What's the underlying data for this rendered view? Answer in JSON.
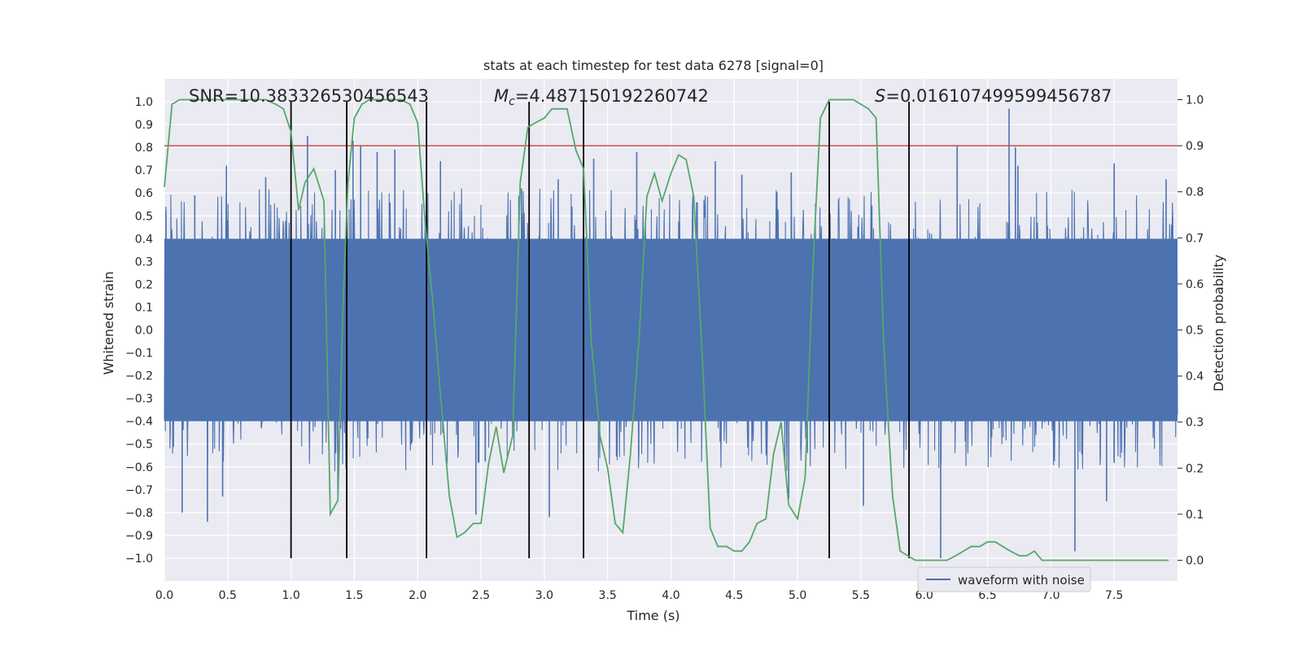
{
  "chart_data": {
    "type": "line",
    "title": "stats at each timestep for test data 6278 [signal=0]",
    "xlabel": "Time (s)",
    "ylabel": "Whitened strain",
    "y2label": "Detection probability",
    "xlim": [
      0,
      8.0
    ],
    "ylim": [
      -1.1,
      1.1
    ],
    "y2lim": [
      -0.045,
      1.045
    ],
    "x_ticks": [
      0.0,
      0.5,
      1.0,
      1.5,
      2.0,
      2.5,
      3.0,
      3.5,
      4.0,
      4.5,
      5.0,
      5.5,
      6.0,
      6.5,
      7.0,
      7.5
    ],
    "x_tick_labels": [
      "0.0",
      "0.5",
      "1.0",
      "1.5",
      "2.0",
      "2.5",
      "3.0",
      "3.5",
      "4.0",
      "4.5",
      "5.0",
      "5.5",
      "6.0",
      "6.5",
      "7.0",
      "7.5"
    ],
    "y_ticks": [
      1.0,
      0.9,
      0.8,
      0.7,
      0.6,
      0.5,
      0.4,
      0.3,
      0.2,
      0.1,
      0.0,
      -0.1,
      -0.2,
      -0.3,
      -0.4,
      -0.5,
      -0.6,
      -0.7,
      -0.8,
      -0.9,
      -1.0
    ],
    "y_tick_labels": [
      "1.0",
      "0.9",
      "0.8",
      "0.7",
      "0.6",
      "0.5",
      "0.4",
      "0.3",
      "0.2",
      "0.1",
      "0.0",
      "−0.1",
      "−0.2",
      "−0.3",
      "−0.4",
      "−0.5",
      "−0.6",
      "−0.7",
      "−0.8",
      "−0.9",
      "−1.0"
    ],
    "y2_ticks": [
      1.0,
      0.9,
      0.8,
      0.7,
      0.6,
      0.5,
      0.4,
      0.3,
      0.2,
      0.1,
      0.0
    ],
    "y2_tick_labels": [
      "1.0",
      "0.9",
      "0.8",
      "0.7",
      "0.6",
      "0.5",
      "0.4",
      "0.3",
      "0.2",
      "0.1",
      "0.0"
    ],
    "grid": true,
    "annotations": {
      "snr": "SNR=10.383326530456543",
      "mc_symbol": "M",
      "mc_subscript": "c",
      "mc_value": "=4.487150192260742",
      "s_symbol": "S",
      "s_value": "=0.016107499599456787"
    },
    "legend": {
      "position": "bottom-right",
      "entries": [
        "waveform with noise"
      ]
    },
    "threshold": {
      "y2": 0.9,
      "color": "#c44e52"
    },
    "vertical_lines": [
      1.0,
      1.44,
      2.07,
      2.88,
      3.31,
      5.25,
      5.88
    ],
    "vertical_line_range": [
      -1.0,
      1.0
    ],
    "waveform": {
      "name": "waveform with noise",
      "color": "#4c72b0",
      "x_range": [
        0,
        8.0
      ],
      "core_amplitude": 0.4,
      "spikes": [
        [
          0.14,
          -0.8
        ],
        [
          0.24,
          0.59
        ],
        [
          0.34,
          -0.84
        ],
        [
          0.46,
          -0.73
        ],
        [
          0.49,
          0.72
        ],
        [
          0.8,
          0.67
        ],
        [
          1.13,
          0.85
        ],
        [
          1.35,
          0.7
        ],
        [
          1.37,
          -0.72
        ],
        [
          1.49,
          0.83
        ],
        [
          1.55,
          0.81
        ],
        [
          1.68,
          0.78
        ],
        [
          1.82,
          0.79
        ],
        [
          2.18,
          0.74
        ],
        [
          2.46,
          -0.81
        ],
        [
          2.82,
          0.62
        ],
        [
          3.04,
          -0.82
        ],
        [
          3.11,
          0.66
        ],
        [
          3.39,
          0.75
        ],
        [
          3.73,
          0.78
        ],
        [
          4.35,
          0.74
        ],
        [
          4.56,
          0.68
        ],
        [
          4.93,
          -0.74
        ],
        [
          4.95,
          0.69
        ],
        [
          5.52,
          -0.77
        ],
        [
          6.13,
          -1.0
        ],
        [
          6.26,
          0.81
        ],
        [
          6.67,
          0.97
        ],
        [
          6.72,
          0.8
        ],
        [
          6.74,
          0.72
        ],
        [
          7.19,
          -0.97
        ],
        [
          7.44,
          -0.75
        ],
        [
          7.5,
          0.73
        ],
        [
          7.91,
          0.66
        ]
      ]
    },
    "probability": {
      "name": "detection probability",
      "color": "#55a868",
      "x": [
        0.0,
        0.06,
        0.12,
        0.25,
        0.4,
        0.55,
        0.7,
        0.8,
        0.88,
        0.94,
        1.0,
        1.06,
        1.11,
        1.18,
        1.26,
        1.31,
        1.37,
        1.41,
        1.45,
        1.5,
        1.56,
        1.62,
        1.75,
        1.87,
        1.94,
        2.0,
        2.06,
        2.12,
        2.18,
        2.25,
        2.31,
        2.37,
        2.44,
        2.5,
        2.56,
        2.62,
        2.68,
        2.75,
        2.81,
        2.87,
        2.93,
        3.0,
        3.06,
        3.12,
        3.18,
        3.25,
        3.31,
        3.37,
        3.44,
        3.5,
        3.56,
        3.62,
        3.68,
        3.75,
        3.81,
        3.87,
        3.93,
        4.0,
        4.06,
        4.12,
        4.18,
        4.25,
        4.31,
        4.37,
        4.44,
        4.5,
        4.56,
        4.62,
        4.68,
        4.75,
        4.81,
        4.87,
        4.93,
        5.0,
        5.06,
        5.12,
        5.18,
        5.25,
        5.31,
        5.37,
        5.44,
        5.5,
        5.56,
        5.62,
        5.68,
        5.75,
        5.81,
        5.87,
        5.93,
        6.0,
        6.06,
        6.12,
        6.18,
        6.25,
        6.31,
        6.37,
        6.44,
        6.5,
        6.56,
        6.62,
        6.68,
        6.75,
        6.81,
        6.87,
        6.93,
        7.0,
        7.06,
        7.12,
        7.18,
        7.25,
        7.31,
        7.37,
        7.44,
        7.5,
        7.56,
        7.62,
        7.68,
        7.75,
        7.81,
        7.87,
        7.93
      ],
      "y": [
        0.81,
        0.99,
        1.0,
        1.0,
        1.0,
        1.0,
        1.0,
        1.0,
        0.99,
        0.98,
        0.93,
        0.76,
        0.82,
        0.85,
        0.78,
        0.1,
        0.13,
        0.55,
        0.82,
        0.96,
        0.99,
        1.0,
        1.0,
        1.0,
        0.99,
        0.95,
        0.73,
        0.56,
        0.36,
        0.14,
        0.05,
        0.06,
        0.08,
        0.08,
        0.21,
        0.29,
        0.19,
        0.27,
        0.82,
        0.94,
        0.95,
        0.96,
        0.98,
        0.98,
        0.98,
        0.89,
        0.85,
        0.48,
        0.27,
        0.2,
        0.08,
        0.06,
        0.23,
        0.49,
        0.79,
        0.84,
        0.78,
        0.84,
        0.88,
        0.87,
        0.79,
        0.43,
        0.07,
        0.03,
        0.03,
        0.02,
        0.02,
        0.04,
        0.08,
        0.09,
        0.23,
        0.3,
        0.12,
        0.09,
        0.18,
        0.63,
        0.96,
        1.0,
        1.0,
        1.0,
        1.0,
        0.99,
        0.98,
        0.96,
        0.47,
        0.14,
        0.02,
        0.01,
        0.0,
        0.0,
        0.0,
        0.0,
        0.0,
        0.01,
        0.02,
        0.03,
        0.03,
        0.04,
        0.04,
        0.03,
        0.02,
        0.01,
        0.01,
        0.02,
        0.0,
        0.0,
        0.0,
        0.0,
        0.0,
        0.0,
        0.0,
        0.0,
        0.0,
        0.0,
        0.0,
        0.0,
        0.0,
        0.0,
        0.0,
        0.0,
        0.0
      ]
    }
  }
}
